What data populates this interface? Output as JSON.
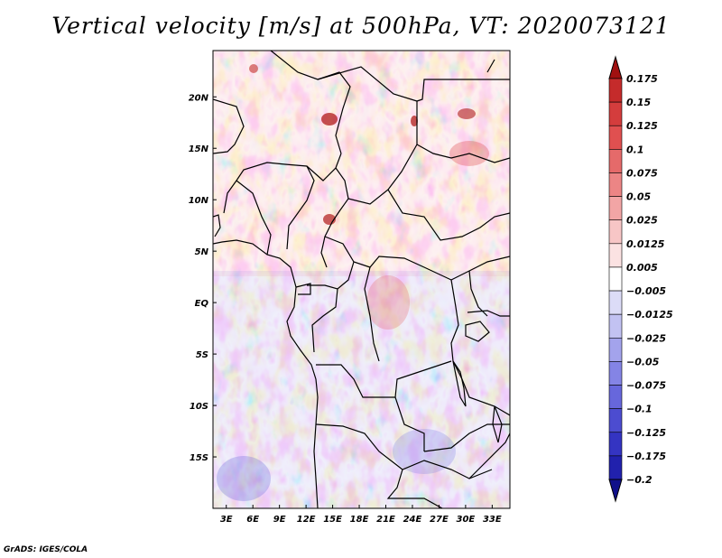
{
  "title": "Vertical velocity [m/s] at 500hPa, VT: 2020073121",
  "footer": "GrADS: IGES/COLA",
  "map": {
    "lat_labels": [
      {
        "text": "20N",
        "lat": 20
      },
      {
        "text": "15N",
        "lat": 15
      },
      {
        "text": "10N",
        "lat": 10
      },
      {
        "text": "5N",
        "lat": 5
      },
      {
        "text": "EQ",
        "lat": 0
      },
      {
        "text": "5S",
        "lat": -5
      },
      {
        "text": "10S",
        "lat": -10
      },
      {
        "text": "15S",
        "lat": -15
      }
    ],
    "lon_labels": [
      {
        "text": "3E",
        "lon": 3
      },
      {
        "text": "6E",
        "lon": 6
      },
      {
        "text": "9E",
        "lon": 9
      },
      {
        "text": "12E",
        "lon": 12
      },
      {
        "text": "15E",
        "lon": 15
      },
      {
        "text": "18E",
        "lon": 18
      },
      {
        "text": "21E",
        "lon": 21
      },
      {
        "text": "24E",
        "lon": 24
      },
      {
        "text": "27E",
        "lon": 27
      },
      {
        "text": "30E",
        "lon": 30
      },
      {
        "text": "33E",
        "lon": 33
      }
    ],
    "lon_range": [
      1.5,
      35.0
    ],
    "lat_range": [
      -20.0,
      24.5
    ]
  },
  "legend": {
    "levels": [
      "0.175",
      "0.15",
      "0.125",
      "0.1",
      "0.075",
      "0.05",
      "0.025",
      "0.0125",
      "0.005",
      "-0.005",
      "-0.0125",
      "-0.025",
      "-0.05",
      "-0.075",
      "-0.1",
      "-0.125",
      "-0.175",
      "-0.2"
    ],
    "colors": [
      "#b01a1a",
      "#c52b2b",
      "#d43d3d",
      "#e05050",
      "#e56a6a",
      "#ec8585",
      "#f2a5a5",
      "#f7c6c6",
      "#fbe2e2",
      "#ffffff",
      "#dcdcf7",
      "#c2c2f2",
      "#a3a3ec",
      "#8484e5",
      "#6767dc",
      "#4c4cd0",
      "#3434c2",
      "#2121ad",
      "#12128f"
    ],
    "top_arrow_color": "#a01010",
    "bottom_arrow_color": "#10108a"
  }
}
